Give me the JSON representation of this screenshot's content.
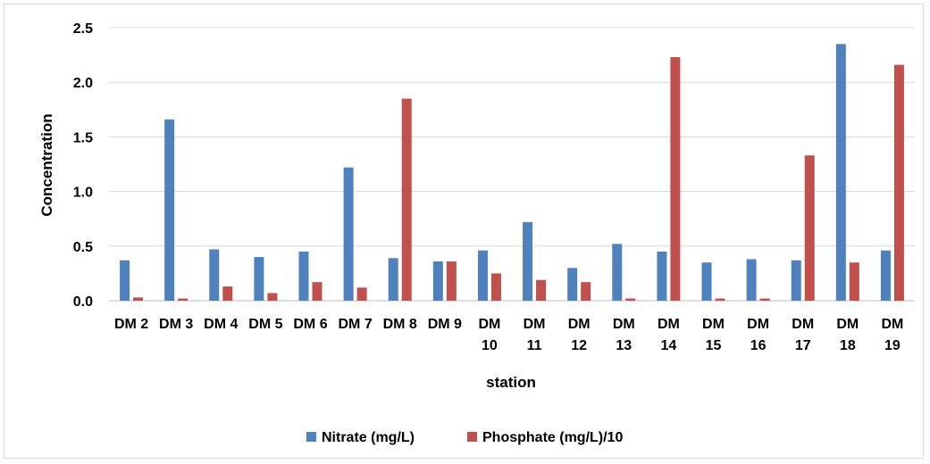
{
  "chart_data": {
    "type": "bar",
    "xlabel": "station",
    "ylabel": "Concentration",
    "ylim": [
      0,
      2.5
    ],
    "yticks": [
      "0.0",
      "0.5",
      "1.0",
      "1.5",
      "2.0",
      "2.5"
    ],
    "grid": true,
    "legend_position": "bottom",
    "categories": [
      [
        "DM 2"
      ],
      [
        "DM 3"
      ],
      [
        "DM 4"
      ],
      [
        "DM 5"
      ],
      [
        "DM 6"
      ],
      [
        "DM 7"
      ],
      [
        "DM 8"
      ],
      [
        "DM 9"
      ],
      [
        "DM",
        "10"
      ],
      [
        "DM",
        "11"
      ],
      [
        "DM",
        "12"
      ],
      [
        "DM",
        "13"
      ],
      [
        "DM",
        "14"
      ],
      [
        "DM",
        "15"
      ],
      [
        "DM",
        "16"
      ],
      [
        "DM",
        "17"
      ],
      [
        "DM",
        "18"
      ],
      [
        "DM",
        "19"
      ]
    ],
    "series": [
      {
        "name": "Nitrate (mg/L)",
        "color": "#4f81bd",
        "values": [
          0.37,
          1.66,
          0.47,
          0.4,
          0.45,
          1.22,
          0.39,
          0.36,
          0.46,
          0.72,
          0.3,
          0.52,
          0.45,
          0.35,
          0.38,
          0.37,
          2.35,
          0.46
        ]
      },
      {
        "name": "Phosphate (mg/L)/10",
        "color": "#c0504d",
        "values": [
          0.03,
          0.02,
          0.13,
          0.07,
          0.17,
          0.12,
          1.85,
          0.36,
          0.25,
          0.19,
          0.17,
          0.02,
          2.23,
          0.02,
          0.02,
          1.33,
          0.35,
          2.16
        ]
      }
    ]
  }
}
